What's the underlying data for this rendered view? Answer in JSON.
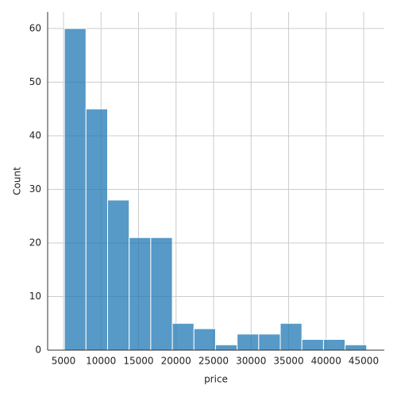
{
  "chart_data": {
    "type": "histogram",
    "x_label": "price",
    "y_label": "Count",
    "bins": [
      5118,
      7995.3,
      10872.6,
      13749.9,
      16627.1,
      19504.4,
      22381.7,
      25259,
      28136.3,
      31013.6,
      33890.9,
      36768.1,
      39645.4,
      42522.7,
      45400
    ],
    "values": [
      60,
      45,
      28,
      21,
      21,
      5,
      4,
      1,
      3,
      3,
      5,
      2,
      2,
      1
    ],
    "color": "#1f77b4",
    "xlim": [
      2884,
      47751
    ],
    "ylim": [
      0,
      63.1
    ],
    "xticks": [
      5000,
      10000,
      15000,
      20000,
      25000,
      30000,
      35000,
      40000,
      45000
    ],
    "yticks": [
      0,
      10,
      20,
      30,
      40,
      50,
      60
    ],
    "grid": true
  }
}
